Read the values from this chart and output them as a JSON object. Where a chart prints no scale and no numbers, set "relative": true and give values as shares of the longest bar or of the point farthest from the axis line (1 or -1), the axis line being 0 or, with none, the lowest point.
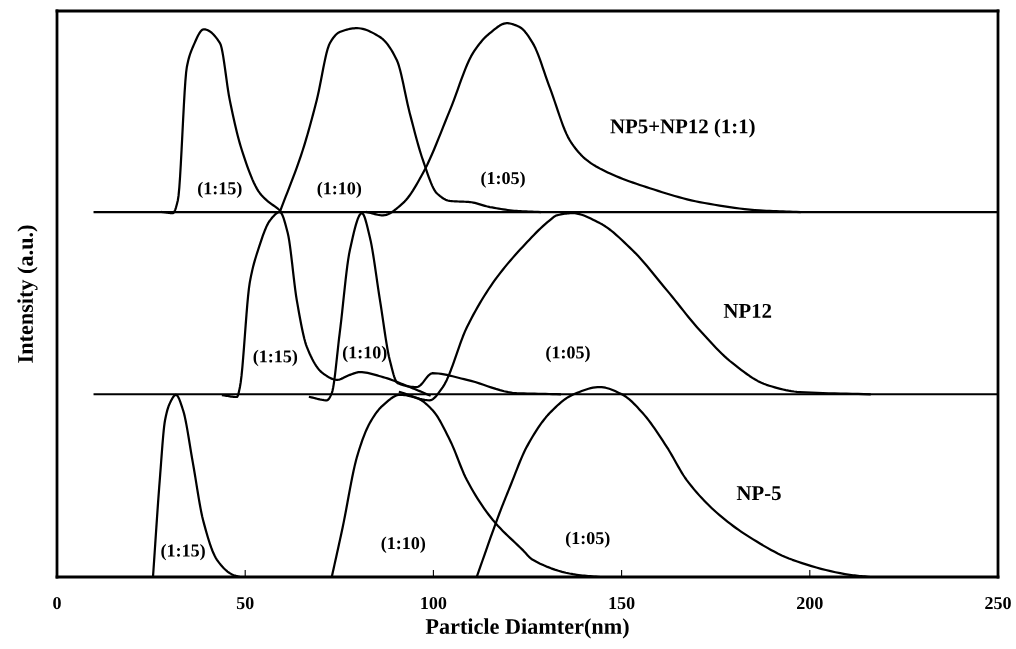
{
  "chart_data": {
    "type": "line",
    "relative": true,
    "xlabel": "Particle Diamter(nm)",
    "ylabel": "Intensity (a.u.)",
    "xlim": [
      0,
      250
    ],
    "xticks": [
      0,
      50,
      100,
      150,
      200,
      250
    ],
    "grid": false,
    "marker": "none",
    "line_style": "solid",
    "series": [
      {
        "color": "#000000",
        "x": [
          10,
          250
        ],
        "values": [
          0.659,
          0.659
        ]
      },
      {
        "color": "#000000",
        "x": [
          10,
          250
        ],
        "values": [
          0.33,
          0.33
        ]
      },
      {
        "color": "#000000",
        "x": [
          28,
          30.8,
          32.1,
          34.5,
          36.1,
          39.0,
          43.3,
          45.9,
          49.1,
          53.9,
          59.2
        ],
        "values": [
          0.659,
          0.657,
          0.68,
          0.921,
          0.957,
          0.989,
          0.964,
          0.861,
          0.771,
          0.693,
          0.662
        ]
      },
      {
        "color": "#000000",
        "x": [
          59.2,
          65.3,
          69.0,
          72.5,
          75.1,
          79.7,
          85.8,
          90.3,
          93.7,
          97.2,
          100.9,
          104.4,
          109.7,
          115.0,
          122.1,
          128.3
        ],
        "values": [
          0.659,
          0.771,
          0.861,
          0.964,
          0.984,
          0.991,
          0.975,
          0.933,
          0.838,
          0.753,
          0.693,
          0.679,
          0.677,
          0.668,
          0.661,
          0.659
        ]
      },
      {
        "color": "#000000",
        "x": [
          82.3,
          86.6,
          91.9,
          97.2,
          104.4,
          110.5,
          115.0,
          119.5,
          122.9,
          126.4,
          130.9,
          136.2,
          140.7,
          146.8,
          157.5,
          170.7,
          186.7,
          197.3
        ],
        "values": [
          0.659,
          0.653,
          0.675,
          0.729,
          0.843,
          0.946,
          0.982,
          1.0,
          0.993,
          0.964,
          0.884,
          0.789,
          0.753,
          0.729,
          0.702,
          0.677,
          0.662,
          0.659
        ]
      },
      {
        "color": "#000000",
        "x": [
          44.1,
          47.8,
          48.6,
          51.2,
          53.4,
          56.6,
          59.2,
          61.3,
          63.7,
          66.4,
          70.6,
          74.4,
          77.8,
          80.5,
          86.6,
          93.7,
          99.0
        ],
        "values": [
          0.328,
          0.325,
          0.343,
          0.531,
          0.59,
          0.644,
          0.659,
          0.621,
          0.5,
          0.415,
          0.368,
          0.356,
          0.365,
          0.37,
          0.361,
          0.343,
          0.328
        ]
      },
      {
        "color": "#000000",
        "x": [
          67.2,
          71.7,
          73.0,
          75.1,
          77.8,
          81.0,
          83.1,
          85.8,
          88.4,
          90.5,
          95.6,
          99.8,
          108.9,
          122.1,
          133.6
        ],
        "values": [
          0.325,
          0.319,
          0.332,
          0.44,
          0.59,
          0.657,
          0.614,
          0.5,
          0.392,
          0.35,
          0.343,
          0.368,
          0.356,
          0.332,
          0.33
        ]
      },
      {
        "color": "#000000",
        "x": [
          91.1,
          99.0,
          102.5,
          108.9,
          115.8,
          123.7,
          130.9,
          132.8,
          137.0,
          144.2,
          152.9,
          162.0,
          170.7,
          179.5,
          188.5,
          197.3,
          215.9
        ],
        "values": [
          0.334,
          0.319,
          0.343,
          0.451,
          0.531,
          0.596,
          0.644,
          0.653,
          0.657,
          0.639,
          0.59,
          0.518,
          0.446,
          0.386,
          0.347,
          0.334,
          0.33
        ]
      },
      {
        "color": "#000000",
        "x": [
          25.5,
          27.3,
          28.7,
          30.0,
          31.6,
          33.5,
          36.1,
          38.8,
          42.5,
          46.7,
          48.6
        ],
        "values": [
          0,
          0.175,
          0.283,
          0.314,
          0.329,
          0.301,
          0.206,
          0.103,
          0.031,
          0.004,
          0
        ]
      },
      {
        "color": "#000000",
        "x": [
          73.0,
          75.9,
          79.7,
          83.1,
          86.6,
          91.1,
          95.6,
          99.8,
          104.4,
          108.9,
          115.8,
          123.7,
          126.4,
          138.1,
          144.2
        ],
        "values": [
          0,
          0.09,
          0.217,
          0.278,
          0.31,
          0.329,
          0.323,
          0.301,
          0.247,
          0.175,
          0.103,
          0.049,
          0.031,
          0.004,
          0
        ]
      },
      {
        "color": "#000000",
        "x": [
          111.5,
          117.6,
          120.3,
          124.8,
          130.9,
          137.0,
          144.2,
          150.3,
          155.6,
          162.0,
          167.3,
          175.3,
          184.0,
          195.4,
          210.6,
          215.9
        ],
        "values": [
          0,
          0.116,
          0.162,
          0.235,
          0.296,
          0.329,
          0.343,
          0.329,
          0.296,
          0.235,
          0.175,
          0.116,
          0.072,
          0.031,
          0.004,
          0
        ]
      }
    ],
    "annotations": [
      "(1:15)",
      "(1:10)",
      "(1:05)",
      "NP5+NP12 (1:1)",
      "(1:15)",
      "(1:10)",
      "(1:05)",
      "NP12",
      "(1:15)",
      "(1:10)",
      "(1:05)",
      "NP-5"
    ]
  }
}
